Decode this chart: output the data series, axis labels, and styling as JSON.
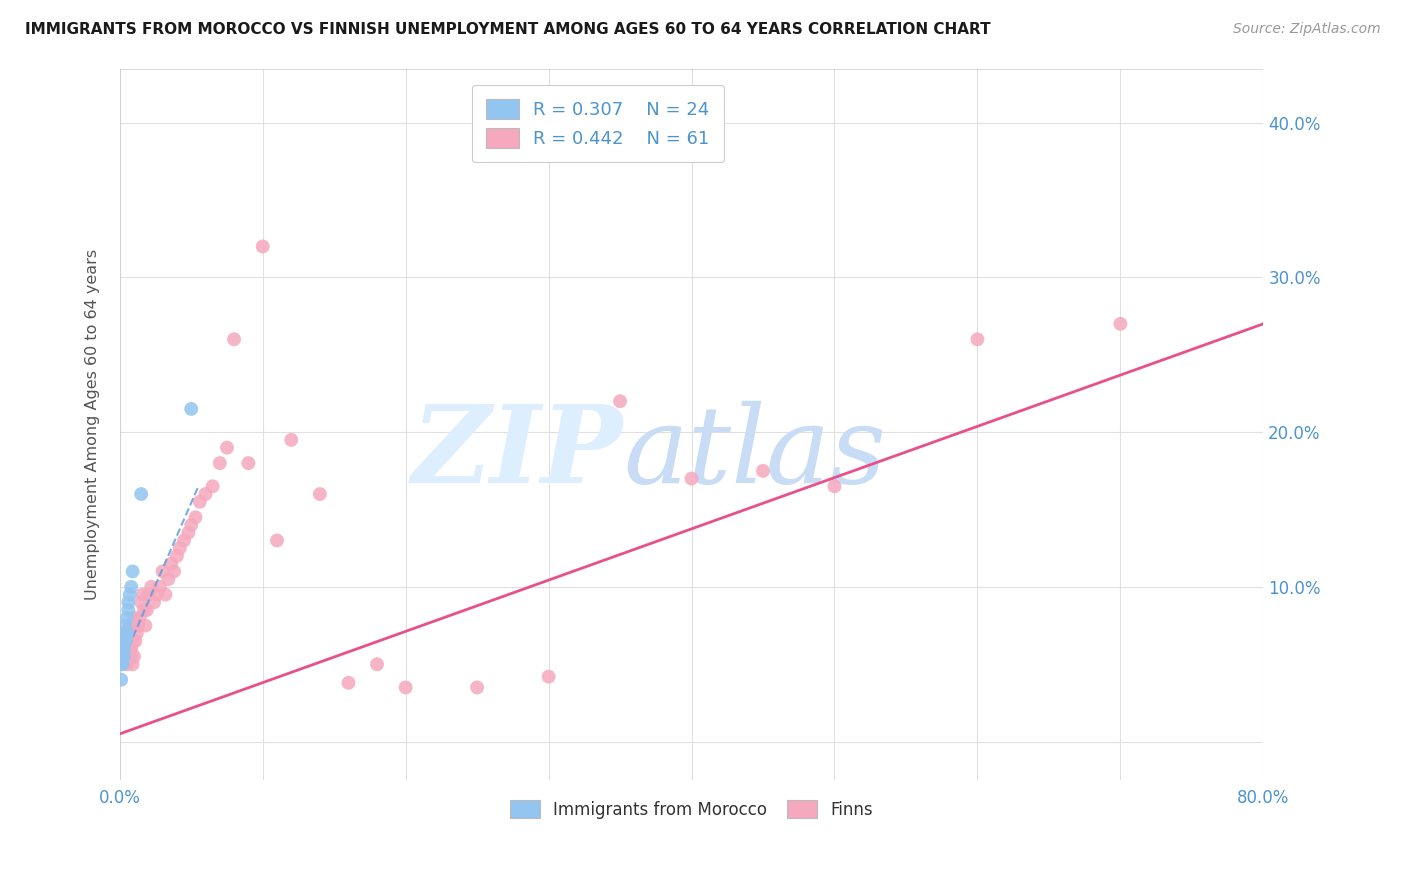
{
  "title": "IMMIGRANTS FROM MOROCCO VS FINNISH UNEMPLOYMENT AMONG AGES 60 TO 64 YEARS CORRELATION CHART",
  "source": "Source: ZipAtlas.com",
  "ylabel": "Unemployment Among Ages 60 to 64 years",
  "xlim": [
    0.0,
    0.8
  ],
  "ylim": [
    -0.025,
    0.435
  ],
  "xticks": [
    0.0,
    0.1,
    0.2,
    0.3,
    0.4,
    0.5,
    0.6,
    0.7,
    0.8
  ],
  "yticks": [
    0.0,
    0.1,
    0.2,
    0.3,
    0.4
  ],
  "ytick_labels_right": [
    "",
    "10.0%",
    "20.0%",
    "30.0%",
    "40.0%"
  ],
  "xtick_labels": [
    "0.0%",
    "",
    "",
    "",
    "",
    "",
    "",
    "",
    "80.0%"
  ],
  "blue_R": 0.307,
  "blue_N": 24,
  "pink_R": 0.442,
  "pink_N": 61,
  "blue_scatter_x": [
    0.001,
    0.001,
    0.001,
    0.001,
    0.002,
    0.002,
    0.002,
    0.002,
    0.003,
    0.003,
    0.003,
    0.003,
    0.004,
    0.004,
    0.004,
    0.005,
    0.005,
    0.006,
    0.006,
    0.007,
    0.008,
    0.009,
    0.015,
    0.05
  ],
  "blue_scatter_y": [
    0.04,
    0.05,
    0.055,
    0.06,
    0.05,
    0.055,
    0.06,
    0.065,
    0.055,
    0.06,
    0.065,
    0.07,
    0.065,
    0.07,
    0.075,
    0.07,
    0.08,
    0.085,
    0.09,
    0.095,
    0.1,
    0.11,
    0.16,
    0.215
  ],
  "pink_scatter_x": [
    0.003,
    0.004,
    0.005,
    0.005,
    0.006,
    0.006,
    0.007,
    0.007,
    0.008,
    0.008,
    0.009,
    0.009,
    0.01,
    0.01,
    0.011,
    0.012,
    0.013,
    0.014,
    0.015,
    0.016,
    0.017,
    0.018,
    0.019,
    0.02,
    0.022,
    0.024,
    0.026,
    0.028,
    0.03,
    0.032,
    0.034,
    0.036,
    0.038,
    0.04,
    0.042,
    0.045,
    0.048,
    0.05,
    0.053,
    0.056,
    0.06,
    0.065,
    0.07,
    0.075,
    0.08,
    0.09,
    0.1,
    0.11,
    0.12,
    0.14,
    0.16,
    0.18,
    0.2,
    0.25,
    0.3,
    0.35,
    0.4,
    0.45,
    0.5,
    0.6,
    0.7
  ],
  "pink_scatter_y": [
    0.055,
    0.06,
    0.065,
    0.05,
    0.07,
    0.055,
    0.075,
    0.06,
    0.06,
    0.055,
    0.065,
    0.05,
    0.08,
    0.055,
    0.065,
    0.07,
    0.075,
    0.08,
    0.09,
    0.095,
    0.085,
    0.075,
    0.085,
    0.095,
    0.1,
    0.09,
    0.095,
    0.1,
    0.11,
    0.095,
    0.105,
    0.115,
    0.11,
    0.12,
    0.125,
    0.13,
    0.135,
    0.14,
    0.145,
    0.155,
    0.16,
    0.165,
    0.18,
    0.19,
    0.26,
    0.18,
    0.32,
    0.13,
    0.195,
    0.16,
    0.038,
    0.05,
    0.035,
    0.035,
    0.042,
    0.22,
    0.17,
    0.175,
    0.165,
    0.26,
    0.27
  ],
  "blue_line_x": [
    0.0,
    0.055
  ],
  "blue_line_y": [
    0.048,
    0.165
  ],
  "pink_line_x": [
    0.0,
    0.8
  ],
  "pink_line_y": [
    0.005,
    0.27
  ],
  "blue_color": "#92c5f0",
  "pink_color": "#f5a8be",
  "blue_line_color": "#5599dd",
  "pink_line_color": "#e8508a",
  "tick_color": "#4d94cc",
  "grid_color": "#e0e0e0",
  "watermark_zip_color": "#ddeeff",
  "watermark_atlas_color": "#c8ddf5"
}
